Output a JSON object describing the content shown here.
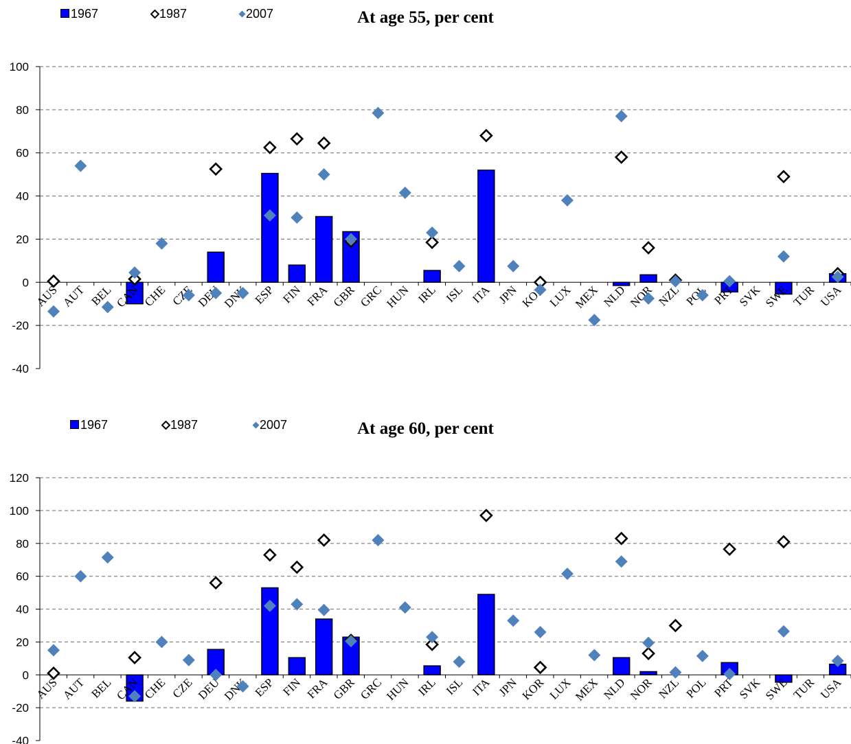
{
  "colors": {
    "bar_1967": "#0000FF",
    "marker_1987": "#000000",
    "marker_2007": "#4F81BD",
    "grid": "#888888"
  },
  "categories": [
    "AUS",
    "AUT",
    "BEL",
    "CAN",
    "CHE",
    "CZE",
    "DEU",
    "DNK",
    "ESP",
    "FIN",
    "FRA",
    "GBR",
    "GRC",
    "HUN",
    "IRL",
    "ISL",
    "ITA",
    "JPN",
    "KOR",
    "LUX",
    "MEX",
    "NLD",
    "NOR",
    "NZL",
    "POL",
    "PRT",
    "SVK",
    "SWE",
    "TUR",
    "USA"
  ],
  "chart_data": [
    {
      "type": "bar",
      "title": "At age 55, per cent",
      "legend": [
        "1967",
        "1987",
        "2007"
      ],
      "legend_placement": "top-left",
      "grid": true,
      "ylim": [
        -40,
        100
      ],
      "yticks": [
        100,
        80,
        60,
        40,
        20,
        0,
        -20,
        -40
      ],
      "categories": [
        "AUS",
        "AUT",
        "BEL",
        "CAN",
        "CHE",
        "CZE",
        "DEU",
        "DNK",
        "ESP",
        "FIN",
        "FRA",
        "GBR",
        "GRC",
        "HUN",
        "IRL",
        "ISL",
        "ITA",
        "JPN",
        "KOR",
        "LUX",
        "MEX",
        "NLD",
        "NOR",
        "NZL",
        "POL",
        "PRT",
        "SVK",
        "SWE",
        "TUR",
        "USA"
      ],
      "series": [
        {
          "name": "1967",
          "kind": "bar",
          "values": [
            null,
            null,
            null,
            -10,
            null,
            null,
            14,
            null,
            50.5,
            8,
            30.5,
            23.5,
            null,
            null,
            5.5,
            null,
            52,
            null,
            null,
            null,
            null,
            -1.5,
            3.5,
            null,
            null,
            -4.5,
            null,
            -5.5,
            null,
            4
          ]
        },
        {
          "name": "1987",
          "kind": "open-diamond",
          "values": [
            0.5,
            null,
            null,
            1.5,
            null,
            null,
            52.5,
            null,
            62.5,
            66.5,
            64.5,
            19,
            null,
            null,
            18.5,
            null,
            68,
            null,
            0,
            null,
            null,
            58,
            16,
            1,
            null,
            null,
            null,
            49,
            null,
            4
          ]
        },
        {
          "name": "2007",
          "kind": "filled-diamond",
          "values": [
            -13.5,
            54,
            -11.5,
            4.5,
            18,
            -6,
            -5,
            -5,
            31,
            30,
            50,
            20,
            78.5,
            41.5,
            23,
            7.5,
            null,
            7.5,
            -3.5,
            38,
            -17.5,
            77,
            -7.5,
            0.5,
            -6,
            0.5,
            null,
            12,
            null,
            2.5
          ]
        }
      ]
    },
    {
      "type": "bar",
      "title": "At age 60, per cent",
      "legend": [
        "1967",
        "1987",
        "2007"
      ],
      "legend_placement": "top-left",
      "grid": true,
      "ylim": [
        -40,
        120
      ],
      "yticks": [
        120,
        100,
        80,
        60,
        40,
        20,
        0,
        -20,
        -40
      ],
      "categories": [
        "AUS",
        "AUT",
        "BEL",
        "CAN",
        "CHE",
        "CZE",
        "DEU",
        "DNK",
        "ESP",
        "FIN",
        "FRA",
        "GBR",
        "GRC",
        "HUN",
        "IRL",
        "ISL",
        "ITA",
        "JPN",
        "KOR",
        "LUX",
        "MEX",
        "NLD",
        "NOR",
        "NZL",
        "POL",
        "PRT",
        "SVK",
        "SWE",
        "TUR",
        "USA"
      ],
      "series": [
        {
          "name": "1967",
          "kind": "bar",
          "values": [
            null,
            null,
            null,
            -16,
            null,
            null,
            15.5,
            null,
            53,
            10.5,
            34,
            23,
            null,
            null,
            5.5,
            null,
            49,
            null,
            null,
            null,
            null,
            10.5,
            2,
            null,
            null,
            7.5,
            null,
            -4.5,
            null,
            6.5
          ]
        },
        {
          "name": "1987",
          "kind": "open-diamond",
          "values": [
            1,
            null,
            null,
            10.5,
            null,
            null,
            56,
            null,
            73,
            65.5,
            82,
            21,
            null,
            null,
            18.5,
            null,
            97,
            null,
            4.5,
            null,
            null,
            83,
            13,
            30,
            null,
            76.5,
            null,
            81,
            null,
            null
          ]
        },
        {
          "name": "2007",
          "kind": "filled-diamond",
          "values": [
            15,
            60,
            71.5,
            -13,
            20,
            9,
            0,
            -7,
            42,
            43,
            39.5,
            20.5,
            82,
            41,
            23,
            8,
            null,
            33,
            26,
            61.5,
            12,
            69,
            19.5,
            1.5,
            11.5,
            0.5,
            null,
            26.5,
            null,
            8.5
          ]
        }
      ]
    }
  ]
}
